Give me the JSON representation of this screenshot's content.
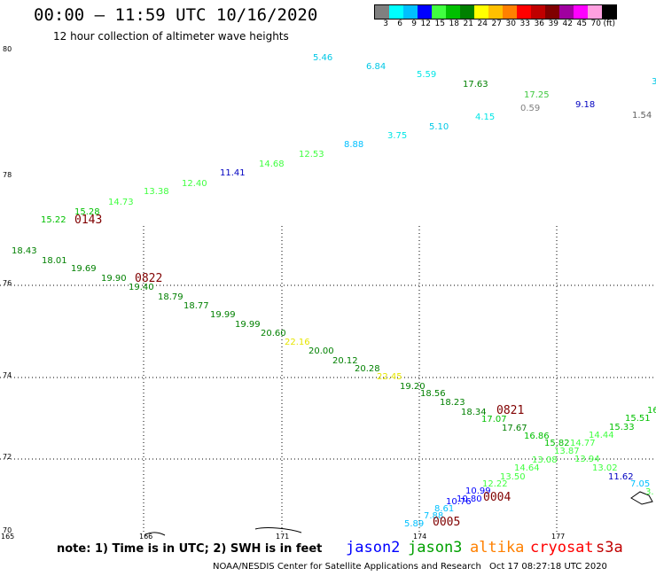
{
  "title": "00:00 – 11:59 UTC 10/16/2020",
  "subtitle": "12 hour collection of altimeter wave heights",
  "colorbar": {
    "colors": [
      "#808080",
      "#00ffff",
      "#00c0ff",
      "#0000ff",
      "#40ff40",
      "#00c000",
      "#008000",
      "#ffff00",
      "#ffc000",
      "#ff8000",
      "#ff0000",
      "#c00000",
      "#800000",
      "#a000a0",
      "#ff00ff",
      "#ffa0e0",
      "#000000"
    ],
    "labels": [
      "3",
      "6",
      "9",
      "12",
      "15",
      "18",
      "21",
      "24",
      "27",
      "30",
      "33",
      "36",
      "39",
      "42",
      "45",
      "70",
      "(ft)"
    ]
  },
  "axes": {
    "y_ticks": [
      "80",
      "78",
      "76",
      "74",
      "72",
      "70"
    ],
    "x_ticks": [
      "165",
      "166",
      "171",
      "174",
      "177"
    ]
  },
  "passes": [
    {
      "label": "0143",
      "color": "#800000"
    },
    {
      "label": "0822",
      "color": "#800000"
    },
    {
      "label": "0821",
      "color": "#800000"
    },
    {
      "label": "0004",
      "color": "#800000"
    },
    {
      "label": "0005",
      "color": "#800000"
    }
  ],
  "observations": [
    {
      "t": "5.46",
      "c": "#00c8e6"
    },
    {
      "t": "6.84",
      "c": "#00c8e6"
    },
    {
      "t": "5.59",
      "c": "#00e6e6"
    },
    {
      "t": "17.63",
      "c": "#008000"
    },
    {
      "t": "17.25",
      "c": "#40c840"
    },
    {
      "t": "3",
      "c": "#00c8e6"
    },
    {
      "t": "0.59",
      "c": "#808080"
    },
    {
      "t": "9.18",
      "c": "#0000c0"
    },
    {
      "t": "1.54",
      "c": "#606060"
    },
    {
      "t": "4.15",
      "c": "#00e6e6"
    },
    {
      "t": "5.10",
      "c": "#00c8e6"
    },
    {
      "t": "3.75",
      "c": "#00e6e6"
    },
    {
      "t": "8.88",
      "c": "#00c0ff"
    },
    {
      "t": "12.53",
      "c": "#40ff40"
    },
    {
      "t": "14.68",
      "c": "#40ff40"
    },
    {
      "t": "11.41",
      "c": "#0000c0"
    },
    {
      "t": "12.40",
      "c": "#40ff40"
    },
    {
      "t": "13.38",
      "c": "#40ff40"
    },
    {
      "t": "14.73",
      "c": "#40ff40"
    },
    {
      "t": "15.28",
      "c": "#00c000"
    },
    {
      "t": "15.22",
      "c": "#00c000"
    },
    {
      "t": "18.43",
      "c": "#008000"
    },
    {
      "t": "18.01",
      "c": "#008000"
    },
    {
      "t": "19.69",
      "c": "#008000"
    },
    {
      "t": "19.90",
      "c": "#008000"
    },
    {
      "t": "19.40",
      "c": "#008000"
    },
    {
      "t": "18.79",
      "c": "#008000"
    },
    {
      "t": "18.77",
      "c": "#008000"
    },
    {
      "t": "19.99",
      "c": "#008000"
    },
    {
      "t": "19.99",
      "c": "#008000"
    },
    {
      "t": "20.60",
      "c": "#008000"
    },
    {
      "t": "22.16",
      "c": "#e6e600"
    },
    {
      "t": "20.00",
      "c": "#008000"
    },
    {
      "t": "20.12",
      "c": "#008000"
    },
    {
      "t": "20.28",
      "c": "#008000"
    },
    {
      "t": "22.45",
      "c": "#e6e600"
    },
    {
      "t": "19.20",
      "c": "#008000"
    },
    {
      "t": "18.56",
      "c": "#008000"
    },
    {
      "t": "18.23",
      "c": "#008000"
    },
    {
      "t": "18.34",
      "c": "#008000"
    },
    {
      "t": "17.07",
      "c": "#00c000"
    },
    {
      "t": "17.67",
      "c": "#008000"
    },
    {
      "t": "16.86",
      "c": "#00c000"
    },
    {
      "t": "15.82",
      "c": "#00c000"
    },
    {
      "t": "14.77",
      "c": "#40ff40"
    },
    {
      "t": "14.44",
      "c": "#40ff40"
    },
    {
      "t": "15.33",
      "c": "#00c000"
    },
    {
      "t": "15.51",
      "c": "#00c000"
    },
    {
      "t": "16",
      "c": "#00c000"
    },
    {
      "t": "13.87",
      "c": "#40ff40"
    },
    {
      "t": "13.94",
      "c": "#40ff40"
    },
    {
      "t": "13.02",
      "c": "#40ff40"
    },
    {
      "t": "11.62",
      "c": "#0000c0"
    },
    {
      "t": "7.05",
      "c": "#00c0ff"
    },
    {
      "t": "3.",
      "c": "#40ff40"
    },
    {
      "t": "13.08",
      "c": "#40ff40"
    },
    {
      "t": "14.64",
      "c": "#40ff40"
    },
    {
      "t": "13.50",
      "c": "#40ff40"
    },
    {
      "t": "12.22",
      "c": "#40ff40"
    },
    {
      "t": "10.99",
      "c": "#0000ff"
    },
    {
      "t": "10.80",
      "c": "#0000ff"
    },
    {
      "t": "10.76",
      "c": "#0000ff"
    },
    {
      "t": "8.61",
      "c": "#00c0ff"
    },
    {
      "t": "7.88",
      "c": "#00c0ff"
    },
    {
      "t": "5.89",
      "c": "#00c0ff"
    }
  ],
  "note": "note: 1) Time is in UTC; 2) SWH is in feet",
  "satellites": [
    {
      "name": "jason2",
      "color": "#0000ff"
    },
    {
      "name": "jason3",
      "color": "#00a000"
    },
    {
      "name": "altika",
      "color": "#ff8000"
    },
    {
      "name": "cryosat",
      "color": "#ff0000"
    },
    {
      "name": "s3a",
      "color": "#c00000"
    }
  ],
  "credit": "NOAA/NESDIS Center for Satellite Applications and Research",
  "timestamp": "Oct 17 08:27:18 UTC 2020"
}
